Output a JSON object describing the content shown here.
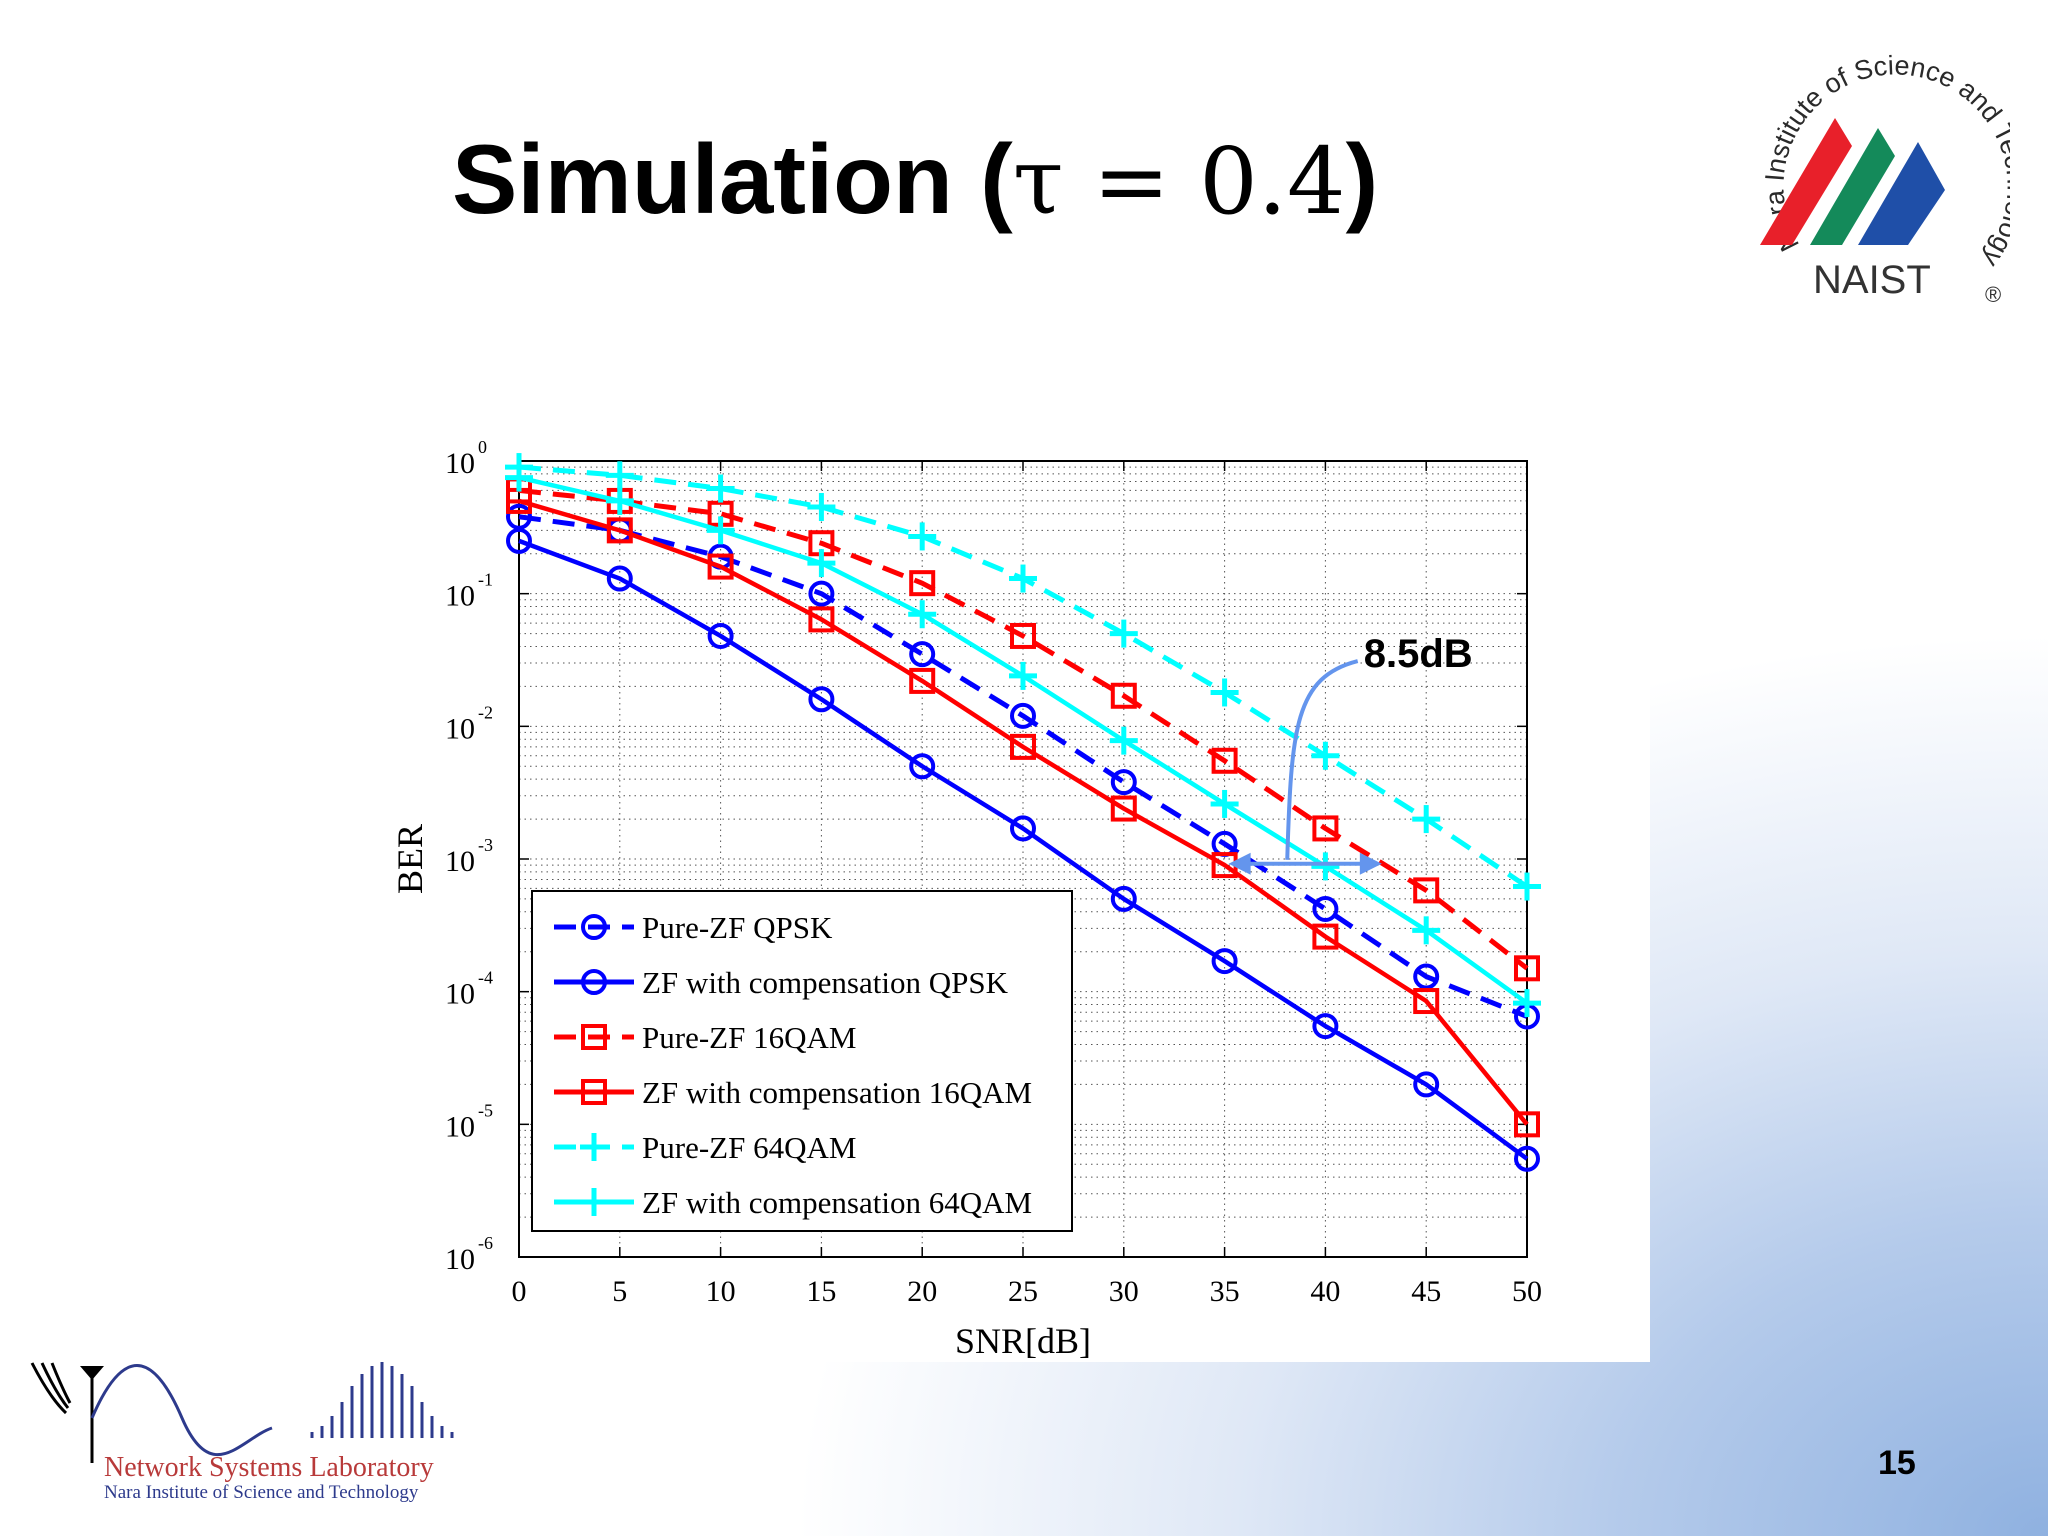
{
  "slide": {
    "title_text": "Simulation (",
    "title_math": "τ = 0.4",
    "title_close": ")",
    "page_number": "15"
  },
  "logos": {
    "naist_ring_text": "Nara Institute of Science and Technology",
    "naist_name": "NAIST",
    "naist_mark": "®",
    "lab_name": "Network Systems Laboratory",
    "lab_institute": "Nara Institute of Science and Technology"
  },
  "colors": {
    "blue": "#0000ff",
    "red": "#ff0000",
    "cyan": "#00ffff",
    "annotation": "#6495ed"
  },
  "chart_data": {
    "type": "line",
    "xlabel": "SNR[dB]",
    "ylabel": "BER",
    "y_scale": "log",
    "xlim": [
      0,
      50
    ],
    "ylim": [
      1e-06,
      1
    ],
    "x_ticks": [
      "0",
      "5",
      "10",
      "15",
      "20",
      "25",
      "30",
      "35",
      "40",
      "45",
      "50"
    ],
    "y_ticks": [
      {
        "base": "10",
        "exp": "0",
        "value": 1
      },
      {
        "base": "10",
        "exp": "-1",
        "value": 0.1
      },
      {
        "base": "10",
        "exp": "-2",
        "value": 0.01
      },
      {
        "base": "10",
        "exp": "-3",
        "value": 0.001
      },
      {
        "base": "10",
        "exp": "-4",
        "value": 0.0001
      },
      {
        "base": "10",
        "exp": "-5",
        "value": 1e-05
      },
      {
        "base": "10",
        "exp": "-6",
        "value": 1e-06
      }
    ],
    "grid": true,
    "legend_position": "bottom-left",
    "x": [
      0,
      5,
      10,
      15,
      20,
      25,
      30,
      35,
      40,
      45,
      50
    ],
    "series": [
      {
        "name": "Pure-ZF QPSK",
        "color": "#0000ff",
        "dash": true,
        "marker": "circle",
        "values": [
          0.38,
          0.3,
          0.19,
          0.1,
          0.035,
          0.012,
          0.0038,
          0.0013,
          0.00042,
          0.00013,
          6.5e-05
        ]
      },
      {
        "name": "ZF with compensation QPSK",
        "color": "#0000ff",
        "dash": false,
        "marker": "circle",
        "values": [
          0.25,
          0.13,
          0.048,
          0.016,
          0.005,
          0.0017,
          0.0005,
          0.00017,
          5.5e-05,
          2e-05,
          5.5e-06
        ]
      },
      {
        "name": "Pure-ZF 16QAM",
        "color": "#ff0000",
        "dash": true,
        "marker": "square",
        "values": [
          0.6,
          0.5,
          0.4,
          0.24,
          0.12,
          0.048,
          0.017,
          0.0055,
          0.0017,
          0.00058,
          0.00015
        ]
      },
      {
        "name": "ZF with compensation 16QAM",
        "color": "#ff0000",
        "dash": false,
        "marker": "square",
        "values": [
          0.5,
          0.3,
          0.16,
          0.064,
          0.022,
          0.007,
          0.0024,
          0.0009,
          0.00026,
          8.5e-05,
          1e-05
        ]
      },
      {
        "name": "Pure-ZF 64QAM",
        "color": "#00ffff",
        "dash": true,
        "marker": "plus",
        "values": [
          0.9,
          0.78,
          0.62,
          0.45,
          0.27,
          0.13,
          0.05,
          0.018,
          0.006,
          0.002,
          0.00062
        ]
      },
      {
        "name": "ZF with compensation 64QAM",
        "color": "#00ffff",
        "dash": false,
        "marker": "plus",
        "values": [
          0.75,
          0.5,
          0.3,
          0.17,
          0.07,
          0.024,
          0.0078,
          0.0026,
          0.00088,
          0.00029,
          8.2e-05
        ]
      }
    ],
    "annotation": {
      "text": "8.5dB",
      "at_y": 0.00092,
      "from_x": 35.2,
      "to_x": 42.8,
      "label_x": 42,
      "label_y": 0.028
    }
  }
}
